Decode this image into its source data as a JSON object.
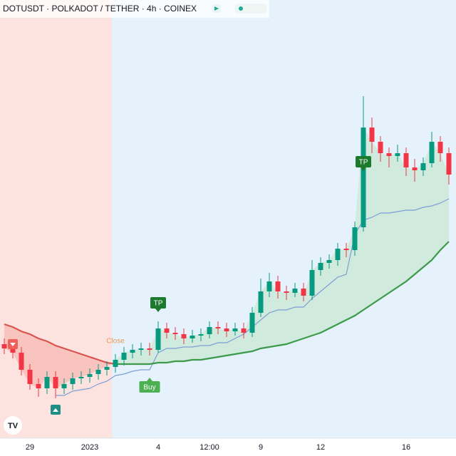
{
  "chart_data": {
    "type": "candlestick",
    "title": "DOTUSDT · POLKADOT / TETHER · 4h · COINEX",
    "categories": [
      null,
      null,
      null,
      "29",
      null,
      null,
      null,
      null,
      null,
      null,
      "2023",
      null,
      null,
      null,
      null,
      null,
      null,
      null,
      "4",
      null,
      null,
      null,
      null,
      null,
      "12:00",
      null,
      null,
      null,
      null,
      null,
      "9",
      null,
      null,
      null,
      null,
      null,
      null,
      "12",
      null,
      null,
      null,
      null,
      null,
      null,
      null,
      null,
      null,
      "16",
      null,
      null,
      null,
      null,
      null
    ],
    "open": [
      4.46,
      4.43,
      4.4,
      4.28,
      4.18,
      4.15,
      4.23,
      4.15,
      4.18,
      4.22,
      4.23,
      4.25,
      4.28,
      4.3,
      4.35,
      4.4,
      4.42,
      4.43,
      4.42,
      4.57,
      4.54,
      4.53,
      4.5,
      4.52,
      4.53,
      4.58,
      4.57,
      4.55,
      4.57,
      4.54,
      4.68,
      4.83,
      4.9,
      4.83,
      4.82,
      4.85,
      4.8,
      4.98,
      5.03,
      5.05,
      5.13,
      5.12,
      5.28,
      5.98,
      5.88,
      5.8,
      5.78,
      5.8,
      5.7,
      5.68,
      5.73,
      5.88,
      5.8
    ],
    "high": [
      4.5,
      4.47,
      4.44,
      4.32,
      4.22,
      4.27,
      4.27,
      4.22,
      4.26,
      4.27,
      4.29,
      4.32,
      4.34,
      4.39,
      4.44,
      4.46,
      4.47,
      4.47,
      4.62,
      4.61,
      4.58,
      4.57,
      4.56,
      4.57,
      4.62,
      4.62,
      4.61,
      4.61,
      4.61,
      4.72,
      4.92,
      4.96,
      4.94,
      4.87,
      4.89,
      4.89,
      5.05,
      5.07,
      5.09,
      5.17,
      5.17,
      5.32,
      6.2,
      6.05,
      5.92,
      5.84,
      5.86,
      5.84,
      5.76,
      5.77,
      5.95,
      5.92,
      5.84
    ],
    "low": [
      4.39,
      4.36,
      4.24,
      4.14,
      4.09,
      4.11,
      4.08,
      4.11,
      4.14,
      4.18,
      4.19,
      4.21,
      4.24,
      4.26,
      4.31,
      4.36,
      4.38,
      4.38,
      4.4,
      4.5,
      4.49,
      4.46,
      4.47,
      4.48,
      4.5,
      4.53,
      4.51,
      4.52,
      4.5,
      4.51,
      4.65,
      4.79,
      4.78,
      4.77,
      4.79,
      4.76,
      4.77,
      4.94,
      4.99,
      5.01,
      5.07,
      5.08,
      5.25,
      5.8,
      5.74,
      5.7,
      5.74,
      5.64,
      5.6,
      5.64,
      5.7,
      5.74,
      5.58
    ],
    "close": [
      4.43,
      4.4,
      4.28,
      4.18,
      4.15,
      4.23,
      4.15,
      4.18,
      4.22,
      4.23,
      4.25,
      4.28,
      4.3,
      4.35,
      4.4,
      4.42,
      4.43,
      4.42,
      4.57,
      4.54,
      4.53,
      4.5,
      4.52,
      4.53,
      4.58,
      4.57,
      4.55,
      4.57,
      4.54,
      4.68,
      4.83,
      4.9,
      4.83,
      4.82,
      4.85,
      4.8,
      4.98,
      5.03,
      5.05,
      5.13,
      5.12,
      5.28,
      5.98,
      5.88,
      5.8,
      5.78,
      5.8,
      5.7,
      5.68,
      5.73,
      5.88,
      5.8,
      5.65
    ],
    "up_color": "#089981",
    "down_color": "#f23645",
    "ylim": [
      3.8,
      6.875
    ],
    "stop": {
      "color": "#7d9fd6",
      "values": [
        null,
        null,
        null,
        null,
        null,
        null,
        4.1,
        4.1,
        4.13,
        4.14,
        4.15,
        4.18,
        4.2,
        4.24,
        4.25,
        4.27,
        4.28,
        4.28,
        4.4,
        4.43,
        4.43,
        4.44,
        4.44,
        4.45,
        4.45,
        4.47,
        4.47,
        4.5,
        4.53,
        4.58,
        4.63,
        4.68,
        4.7,
        4.7,
        4.72,
        4.72,
        4.78,
        4.83,
        4.88,
        4.93,
        4.95,
        5.23,
        5.33,
        5.35,
        5.38,
        5.38,
        5.39,
        5.4,
        5.4,
        5.42,
        5.43,
        5.45,
        5.48
      ]
    },
    "ma": [
      {
        "color": "#d9534f",
        "fill": "#f5a9a3",
        "values": [
          4.6,
          4.58,
          4.55,
          4.53,
          4.5,
          4.48,
          4.45,
          4.43,
          4.41,
          4.39,
          4.37,
          4.35,
          4.33,
          4.32,
          null,
          null,
          null,
          null,
          null,
          null,
          null,
          null,
          null,
          null,
          null,
          null,
          null,
          null,
          null,
          null,
          null,
          null,
          null,
          null,
          null,
          null,
          null,
          null,
          null,
          null,
          null,
          null,
          null,
          null,
          null,
          null,
          null,
          null,
          null,
          null,
          null,
          null,
          null
        ]
      },
      {
        "color": "#3d9a4a",
        "fill": "#bfe3c6",
        "values": [
          null,
          null,
          null,
          null,
          null,
          null,
          null,
          null,
          null,
          null,
          null,
          null,
          null,
          4.32,
          4.32,
          4.32,
          4.32,
          4.32,
          4.33,
          4.33,
          4.34,
          4.34,
          4.35,
          4.35,
          4.36,
          4.37,
          4.38,
          4.39,
          4.4,
          4.41,
          4.43,
          4.44,
          4.45,
          4.46,
          4.48,
          4.5,
          4.52,
          4.54,
          4.57,
          4.6,
          4.63,
          4.66,
          4.7,
          4.74,
          4.78,
          4.82,
          4.86,
          4.9,
          4.95,
          5.0,
          5.05,
          5.12,
          5.18
        ]
      }
    ],
    "signals": [
      {
        "shape": "down",
        "index": 1,
        "price": 4.46,
        "color": "#f0605a"
      },
      {
        "shape": "up",
        "index": 6,
        "price": 4.0,
        "color": "#1f8f86"
      },
      {
        "text": "TP",
        "index": 18,
        "price": 4.75,
        "color": "#1b7a2e",
        "placement": "above"
      },
      {
        "text": "Buy",
        "index": 17,
        "price": 4.16,
        "color": "#4caf50",
        "placement": "below"
      },
      {
        "text": "Close",
        "index": 13,
        "price": 4.48,
        "color": "#e69a5a",
        "placement": "plain"
      },
      {
        "text": "TP",
        "index": 42,
        "price": 5.74,
        "color": "#1b7a2e",
        "placement": "above"
      }
    ]
  }
}
